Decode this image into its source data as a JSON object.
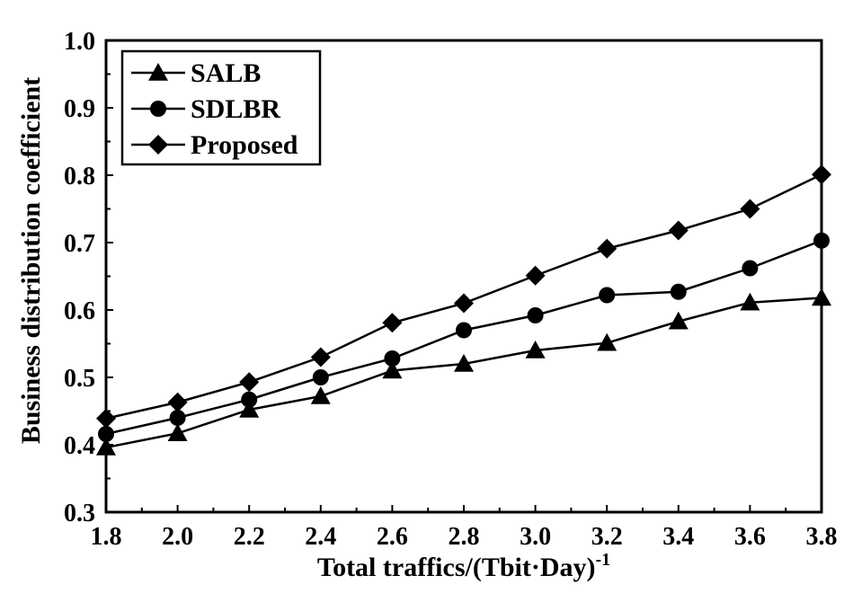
{
  "chart_data": {
    "type": "line",
    "xlabel": "Total traffics/(Tbit·Day)",
    "xlabel_superscript": "-1",
    "ylabel": "Business distribution coefficient",
    "xlim": [
      1.8,
      3.8
    ],
    "ylim": [
      0.3,
      1.0
    ],
    "xticks": [
      1.8,
      2.0,
      2.2,
      2.4,
      2.6,
      2.8,
      3.0,
      3.2,
      3.4,
      3.6,
      3.8
    ],
    "yticks": [
      0.3,
      0.4,
      0.5,
      0.6,
      0.7,
      0.8,
      0.9,
      1.0
    ],
    "xtick_labels": [
      "1.8",
      "2.0",
      "2.2",
      "2.4",
      "2.6",
      "2.8",
      "3.0",
      "3.2",
      "3.4",
      "3.6",
      "3.8"
    ],
    "ytick_labels": [
      "0.3",
      "0.4",
      "0.5",
      "0.6",
      "0.7",
      "0.8",
      "0.9",
      "1.0"
    ],
    "grid": false,
    "legend_position": "top-left",
    "x": [
      1.8,
      2.0,
      2.2,
      2.4,
      2.6,
      2.8,
      3.0,
      3.2,
      3.4,
      3.6,
      3.8
    ],
    "series": [
      {
        "name": "SALB",
        "marker": "triangle",
        "values": [
          0.396,
          0.417,
          0.452,
          0.472,
          0.51,
          0.52,
          0.54,
          0.551,
          0.583,
          0.611,
          0.618
        ]
      },
      {
        "name": "SDLBR",
        "marker": "circle",
        "values": [
          0.416,
          0.44,
          0.467,
          0.5,
          0.528,
          0.57,
          0.592,
          0.622,
          0.627,
          0.662,
          0.703
        ]
      },
      {
        "name": "Proposed",
        "marker": "diamond",
        "values": [
          0.439,
          0.463,
          0.493,
          0.53,
          0.581,
          0.61,
          0.651,
          0.691,
          0.718,
          0.75,
          0.801
        ]
      }
    ]
  }
}
